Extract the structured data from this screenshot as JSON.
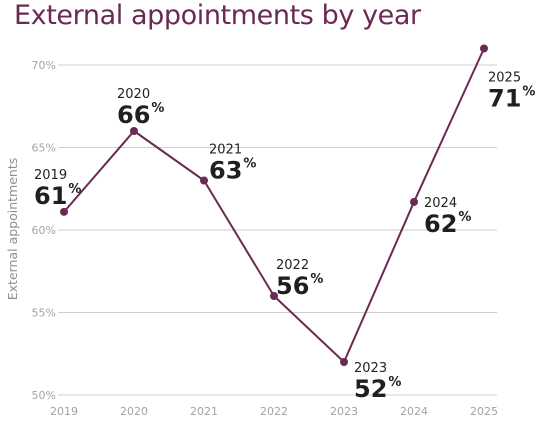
{
  "chart_data": {
    "type": "line",
    "title": "External appointments by year",
    "ylabel": "External appointments",
    "xlabel": "",
    "x": [
      "2019",
      "2020",
      "2021",
      "2022",
      "2023",
      "2024",
      "2025"
    ],
    "series": [
      {
        "values": [
          61,
          66,
          63,
          56,
          52,
          62,
          71
        ]
      }
    ],
    "plotted_values": [
      61.1,
      66.0,
      63.0,
      56.0,
      52.0,
      61.7,
      71.0
    ],
    "data_labels": [
      {
        "year": "2019",
        "value": "61",
        "unit": "%"
      },
      {
        "year": "2020",
        "value": "66",
        "unit": "%"
      },
      {
        "year": "2021",
        "value": "63",
        "unit": "%"
      },
      {
        "year": "2022",
        "value": "56",
        "unit": "%"
      },
      {
        "year": "2023",
        "value": "52",
        "unit": "%"
      },
      {
        "year": "2024",
        "value": "62",
        "unit": "%"
      },
      {
        "year": "2025",
        "value": "71",
        "unit": "%"
      }
    ],
    "yticks": [
      50,
      55,
      60,
      65,
      70
    ],
    "ytick_labels": [
      "50%",
      "55%",
      "60%",
      "65%",
      "70%"
    ],
    "ylim": [
      50,
      71
    ],
    "grid": true,
    "colors": {
      "line": "#6b2a52",
      "title": "#6b2a52"
    }
  }
}
